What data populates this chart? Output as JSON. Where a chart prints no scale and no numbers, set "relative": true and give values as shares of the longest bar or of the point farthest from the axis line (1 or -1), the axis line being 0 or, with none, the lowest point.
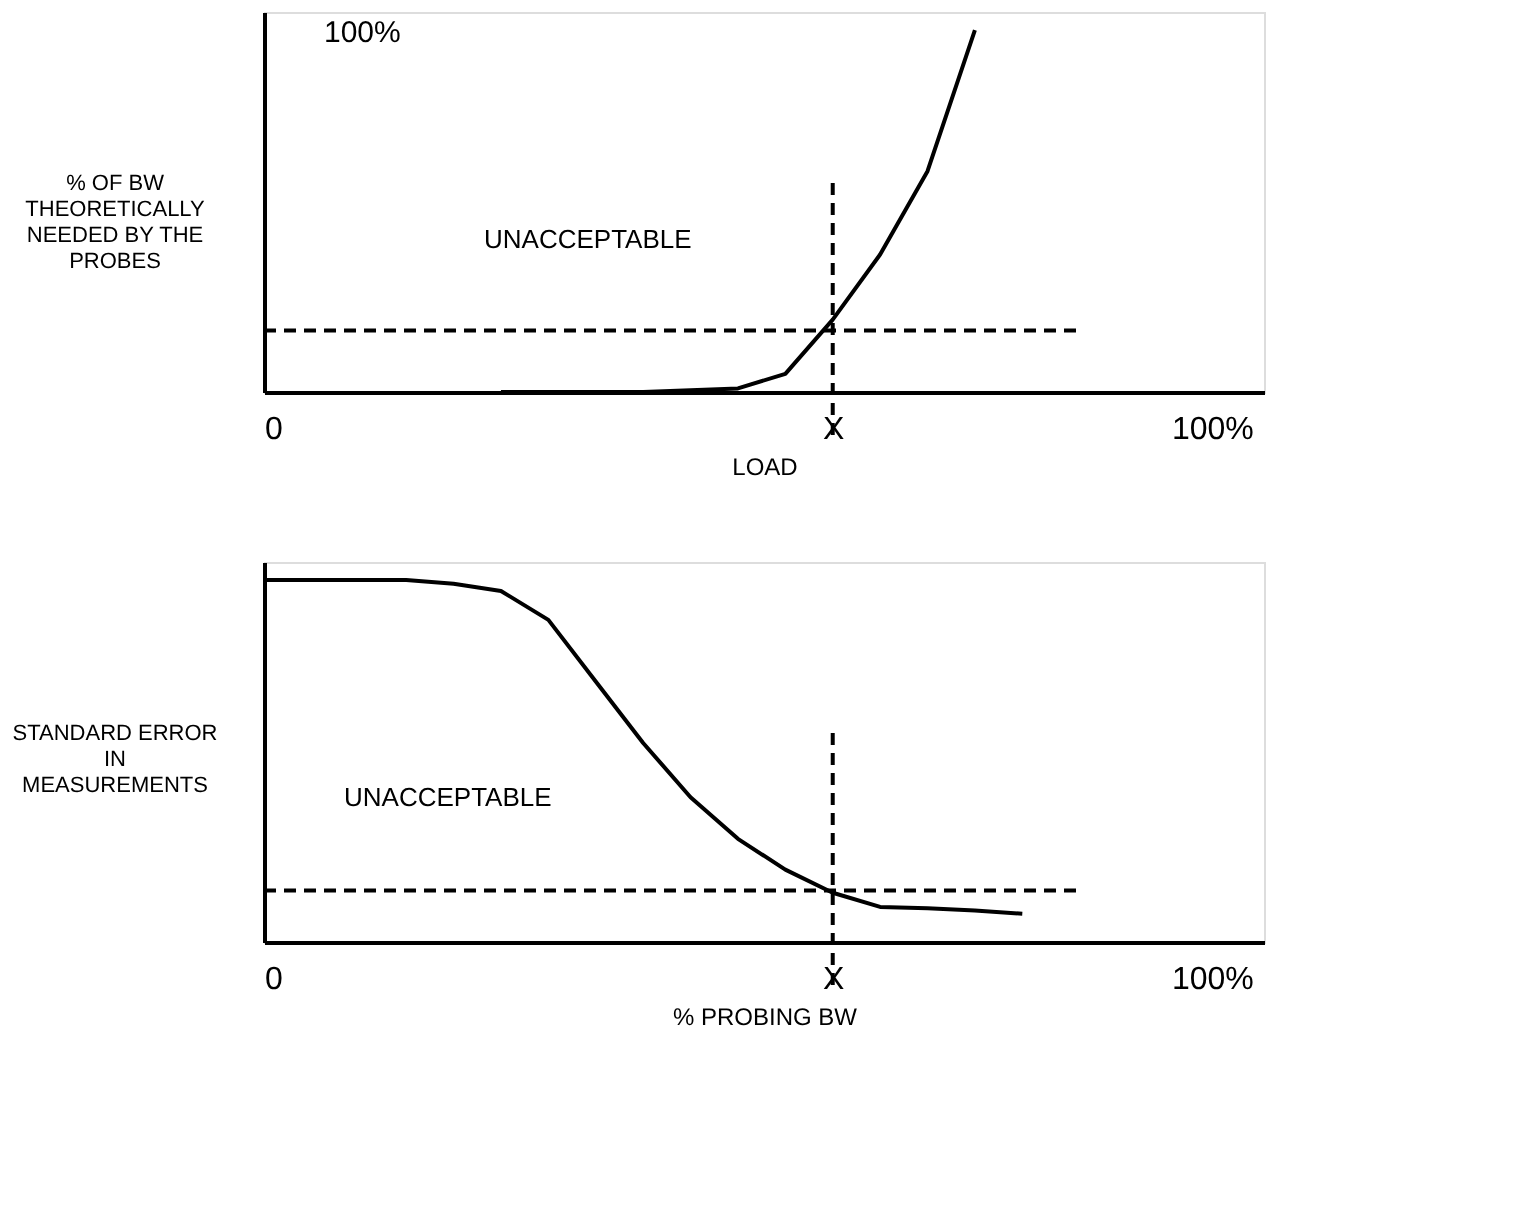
{
  "chart_data": [
    {
      "type": "line",
      "relative": true,
      "ylabel": "% OF BW THEORETICALLY NEEDED BY THE PROBES",
      "xlabel": "LOAD",
      "categories": [
        "0",
        null,
        null,
        null,
        null,
        null,
        null,
        null,
        null,
        null,
        null,
        null,
        "X",
        null,
        null,
        null,
        null,
        null,
        null,
        null,
        "100%"
      ],
      "series": [
        {
          "color": "#000000",
          "values": [
            null,
            null,
            null,
            null,
            null,
            0,
            0,
            0,
            0,
            0.005,
            0.01,
            0.05,
            0.2,
            0.38,
            0.61,
            1,
            null,
            null,
            null,
            null,
            null
          ]
        }
      ],
      "marker": "none",
      "line_style": "solid",
      "ref_lines": [
        {
          "axis": "y",
          "value": 0.17,
          "line_style": "dashed",
          "color": "#000000"
        },
        {
          "axis": "x",
          "value": "X",
          "line_style": "dashed",
          "color": "#000000"
        }
      ],
      "annotations": [
        "100%",
        "UNACCEPTABLE"
      ]
    },
    {
      "type": "line",
      "relative": true,
      "ylabel": "STANDARD ERROR IN MEASUREMENTS",
      "xlabel": "% PROBING BW",
      "categories": [
        "0",
        null,
        null,
        null,
        null,
        null,
        null,
        null,
        null,
        null,
        null,
        null,
        "X",
        null,
        null,
        null,
        null,
        null,
        null,
        null,
        "100%"
      ],
      "series": [
        {
          "color": "#000000",
          "values": [
            1,
            1,
            1,
            1,
            0.99,
            0.97,
            0.89,
            0.72,
            0.55,
            0.4,
            0.285,
            0.2,
            0.136,
            0.097,
            0.093,
            0.087,
            0.078,
            null,
            null,
            null,
            null
          ]
        }
      ],
      "marker": "none",
      "line_style": "solid",
      "ref_lines": [
        {
          "axis": "y",
          "value": 0.142,
          "line_style": "dashed",
          "color": "#000000"
        },
        {
          "axis": "x",
          "value": "X",
          "line_style": "dashed",
          "color": "#000000"
        }
      ],
      "annotations": [
        "UNACCEPTABLE"
      ]
    }
  ]
}
